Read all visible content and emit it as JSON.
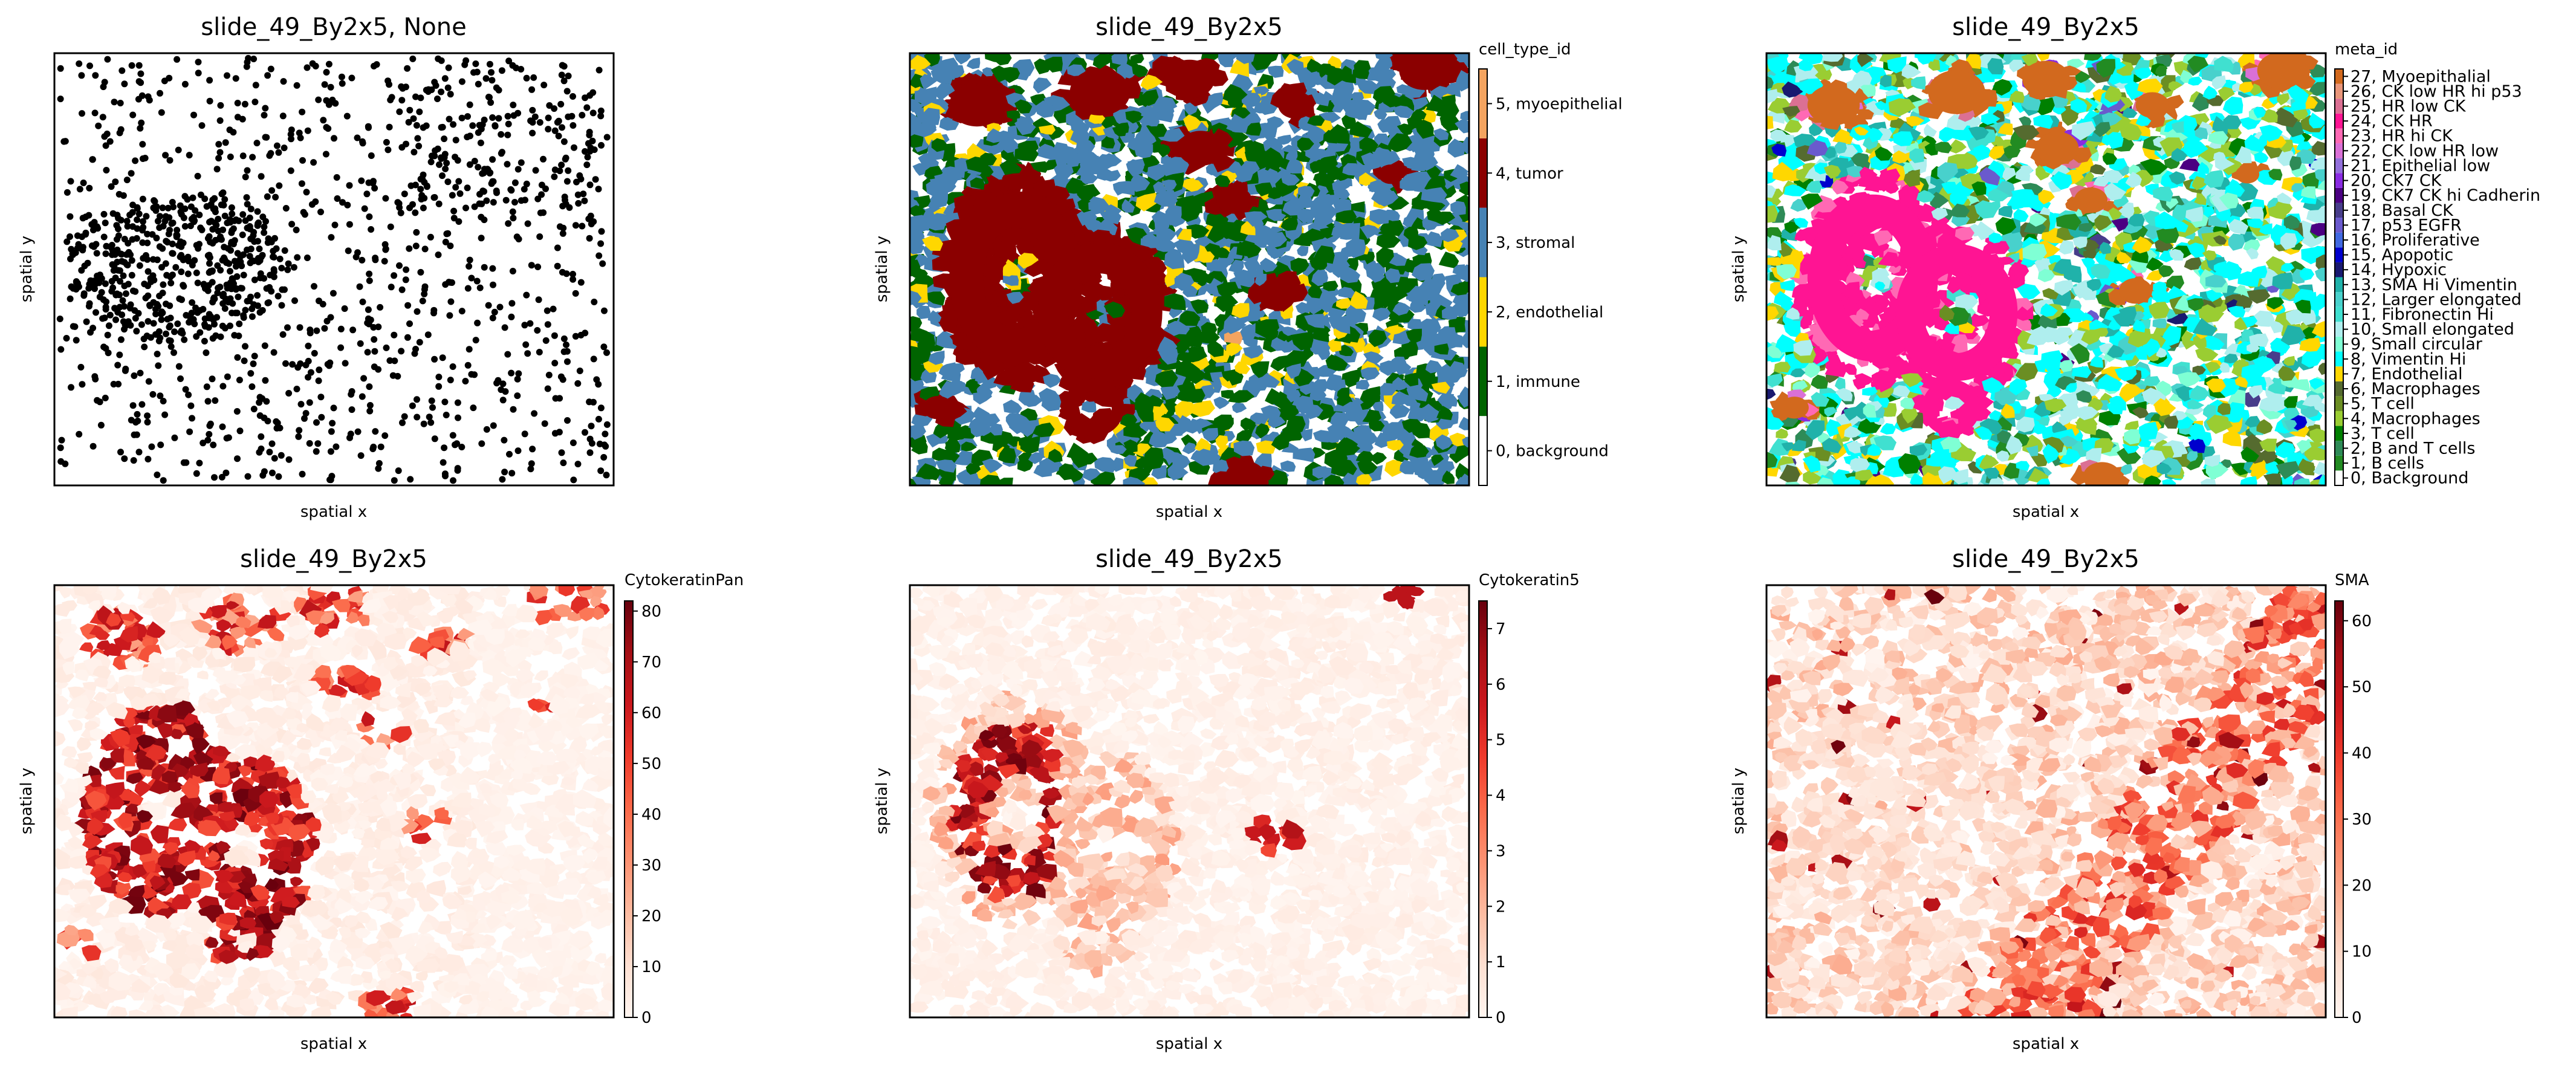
{
  "chart_data": [
    {
      "type": "scatter",
      "title": "slide_49_By2x5, None",
      "xlabel": "spatial x",
      "ylabel": "spatial y",
      "point_color": "#000000",
      "description_of_points": "",
      "color_scale": null
    },
    {
      "type": "heatmap",
      "title": "slide_49_By2x5",
      "xlabel": "spatial x",
      "ylabel": "spatial y",
      "colorbar_title": "cell_type_id",
      "categories": [
        {
          "label": "0, background",
          "color": "#ffffff"
        },
        {
          "label": "1, immune",
          "color": "#006400"
        },
        {
          "label": "2, endothelial",
          "color": "#ffd700"
        },
        {
          "label": "3, stromal",
          "color": "#4682b4"
        },
        {
          "label": "4, tumor",
          "color": "#8b0000"
        },
        {
          "label": "5, myoepithelial",
          "color": "#f4a460"
        }
      ]
    },
    {
      "type": "heatmap",
      "title": "slide_49_By2x5",
      "xlabel": "spatial x",
      "ylabel": "spatial y",
      "colorbar_title": "meta_id",
      "categories": [
        {
          "label": "0, Background",
          "color": "#ffffff"
        },
        {
          "label": "1, B cells",
          "color": "#228b22"
        },
        {
          "label": "2, B and T cells",
          "color": "#2e8b57"
        },
        {
          "label": "3, T cell",
          "color": "#008000"
        },
        {
          "label": "4, Macrophages",
          "color": "#9acd32"
        },
        {
          "label": "5, T cell",
          "color": "#6b8e23"
        },
        {
          "label": "6, Macrophages",
          "color": "#556b2f"
        },
        {
          "label": "7, Endothelial",
          "color": "#ffd700"
        },
        {
          "label": "8, Vimentin Hi",
          "color": "#00ffff"
        },
        {
          "label": "9, Small circular",
          "color": "#7fffd4"
        },
        {
          "label": "10, Small elongated",
          "color": "#afeeee"
        },
        {
          "label": "11, Fibronectin Hi",
          "color": "#40e0d0"
        },
        {
          "label": "12, Larger elongated",
          "color": "#48d1cc"
        },
        {
          "label": "13, SMA Hi Vimentin",
          "color": "#20b2aa"
        },
        {
          "label": "14, Hypoxic",
          "color": "#191970"
        },
        {
          "label": "15, Apopotic",
          "color": "#0000cd"
        },
        {
          "label": "16, Proliferative",
          "color": "#4169e1"
        },
        {
          "label": "17, p53 EGFR",
          "color": "#6a5acd"
        },
        {
          "label": "18, Basal CK",
          "color": "#483d8b"
        },
        {
          "label": "19, CK7 CK hi Cadherin",
          "color": "#4b0082"
        },
        {
          "label": "20, CK7 CK",
          "color": "#8a2be2"
        },
        {
          "label": "21, Epithelial low",
          "color": "#9370db"
        },
        {
          "label": "22, CK low HR low",
          "color": "#da70d6"
        },
        {
          "label": "23, HR hi CK",
          "color": "#ff69b4"
        },
        {
          "label": "24, CK HR",
          "color": "#ff1493"
        },
        {
          "label": "25, HR low CK",
          "color": "#db7093"
        },
        {
          "label": "26, CK low HR hi p53",
          "color": "#e9967a"
        },
        {
          "label": "27, Myoepithalial",
          "color": "#d2691e"
        }
      ]
    },
    {
      "type": "heatmap",
      "title": "slide_49_By2x5",
      "xlabel": "spatial x",
      "ylabel": "spatial y",
      "colorbar_title": "CytokeratinPan",
      "colormap": "Reds",
      "ylim": [
        0,
        82
      ],
      "ticks": [
        0,
        10,
        20,
        30,
        40,
        50,
        60,
        70,
        80
      ]
    },
    {
      "type": "heatmap",
      "title": "slide_49_By2x5",
      "xlabel": "spatial x",
      "ylabel": "spatial y",
      "colorbar_title": "Cytokeratin5",
      "colormap": "Reds",
      "ylim": [
        0,
        7.5
      ],
      "ticks": [
        0,
        1,
        2,
        3,
        4,
        5,
        6,
        7
      ]
    },
    {
      "type": "heatmap",
      "title": "slide_49_By2x5",
      "xlabel": "spatial x",
      "ylabel": "spatial y",
      "colorbar_title": "SMA",
      "colormap": "Reds",
      "ylim": [
        0,
        63
      ],
      "ticks": [
        0,
        10,
        20,
        30,
        40,
        50,
        60
      ]
    }
  ]
}
